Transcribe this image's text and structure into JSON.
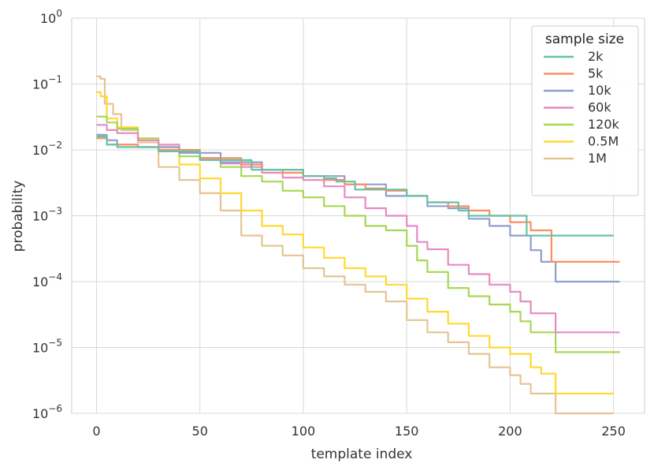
{
  "chart_data": {
    "type": "line",
    "xlabel": "template index",
    "ylabel": "probability",
    "x_scale": "linear",
    "y_scale": "log",
    "xlim": [
      -12,
      265
    ],
    "ylim": [
      1e-06,
      1
    ],
    "x_ticks": [
      0,
      50,
      100,
      150,
      200,
      250
    ],
    "x_tick_labels": [
      "0",
      "50",
      "100",
      "150",
      "200",
      "250"
    ],
    "y_ticks": [
      1e-06,
      1e-05,
      0.0001,
      0.001,
      0.01,
      0.1,
      1
    ],
    "y_tick_labels": [
      {
        "base": "10",
        "exp": "−6"
      },
      {
        "base": "10",
        "exp": "−5"
      },
      {
        "base": "10",
        "exp": "−4"
      },
      {
        "base": "10",
        "exp": "−3"
      },
      {
        "base": "10",
        "exp": "−2"
      },
      {
        "base": "10",
        "exp": "−1"
      },
      {
        "base": "10",
        "exp": "0"
      }
    ],
    "grid": true,
    "legend": {
      "title": "sample size",
      "position": "top-right"
    },
    "series": [
      {
        "name": "2k",
        "color": "#66c2a5",
        "points": [
          [
            0,
            0.016
          ],
          [
            5,
            0.012
          ],
          [
            10,
            0.011
          ],
          [
            20,
            0.011
          ],
          [
            30,
            0.0095
          ],
          [
            50,
            0.007
          ],
          [
            75,
            0.005
          ],
          [
            100,
            0.004
          ],
          [
            110,
            0.0037
          ],
          [
            116,
            0.0033
          ],
          [
            125,
            0.0025
          ],
          [
            140,
            0.0025
          ],
          [
            150,
            0.002
          ],
          [
            160,
            0.0016
          ],
          [
            175,
            0.0012
          ],
          [
            180,
            0.001
          ],
          [
            206,
            0.001
          ],
          [
            208,
            0.0005
          ],
          [
            250,
            0.0005
          ]
        ]
      },
      {
        "name": "5k",
        "color": "#fc8d62",
        "points": [
          [
            0,
            0.015
          ],
          [
            5,
            0.012
          ],
          [
            20,
            0.011
          ],
          [
            30,
            0.01
          ],
          [
            50,
            0.0075
          ],
          [
            70,
            0.006
          ],
          [
            80,
            0.005
          ],
          [
            90,
            0.0045
          ],
          [
            100,
            0.004
          ],
          [
            110,
            0.0035
          ],
          [
            120,
            0.003
          ],
          [
            130,
            0.0026
          ],
          [
            140,
            0.0024
          ],
          [
            150,
            0.002
          ],
          [
            160,
            0.0016
          ],
          [
            170,
            0.0014
          ],
          [
            180,
            0.0012
          ],
          [
            190,
            0.001
          ],
          [
            200,
            0.0008
          ],
          [
            210,
            0.0006
          ],
          [
            220,
            0.0002
          ],
          [
            253,
            0.0002
          ]
        ]
      },
      {
        "name": "10k",
        "color": "#8da0cb",
        "points": [
          [
            0,
            0.017
          ],
          [
            5,
            0.014
          ],
          [
            10,
            0.012
          ],
          [
            20,
            0.011
          ],
          [
            40,
            0.009
          ],
          [
            60,
            0.0065
          ],
          [
            80,
            0.005
          ],
          [
            100,
            0.004
          ],
          [
            120,
            0.003
          ],
          [
            140,
            0.002
          ],
          [
            160,
            0.0014
          ],
          [
            170,
            0.0013
          ],
          [
            180,
            0.0009
          ],
          [
            190,
            0.0007
          ],
          [
            200,
            0.0005
          ],
          [
            210,
            0.0003
          ],
          [
            215,
            0.0002
          ],
          [
            220,
            0.0002
          ],
          [
            222,
            0.0001
          ],
          [
            253,
            0.0001
          ]
        ]
      },
      {
        "name": "60k",
        "color": "#e78ac3",
        "points": [
          [
            0,
            0.024
          ],
          [
            5,
            0.02
          ],
          [
            10,
            0.018
          ],
          [
            20,
            0.014
          ],
          [
            30,
            0.012
          ],
          [
            40,
            0.009
          ],
          [
            50,
            0.007
          ],
          [
            60,
            0.0062
          ],
          [
            70,
            0.0055
          ],
          [
            80,
            0.0045
          ],
          [
            90,
            0.0038
          ],
          [
            100,
            0.0035
          ],
          [
            110,
            0.0028
          ],
          [
            120,
            0.0019
          ],
          [
            130,
            0.0013
          ],
          [
            140,
            0.001
          ],
          [
            150,
            0.0007
          ],
          [
            155,
            0.0004
          ],
          [
            160,
            0.00031
          ],
          [
            170,
            0.00018
          ],
          [
            180,
            0.00013
          ],
          [
            190,
            9e-05
          ],
          [
            200,
            7e-05
          ],
          [
            205,
            5e-05
          ],
          [
            210,
            3.3e-05
          ],
          [
            220,
            3.3e-05
          ],
          [
            222,
            1.7e-05
          ],
          [
            253,
            1.7e-05
          ]
        ]
      },
      {
        "name": "120k",
        "color": "#a6d854",
        "points": [
          [
            0,
            0.032
          ],
          [
            5,
            0.026
          ],
          [
            10,
            0.021
          ],
          [
            20,
            0.015
          ],
          [
            30,
            0.011
          ],
          [
            40,
            0.008
          ],
          [
            50,
            0.0075
          ],
          [
            60,
            0.0055
          ],
          [
            70,
            0.004
          ],
          [
            80,
            0.0033
          ],
          [
            90,
            0.0024
          ],
          [
            100,
            0.0019
          ],
          [
            110,
            0.0014
          ],
          [
            120,
            0.001
          ],
          [
            130,
            0.0007
          ],
          [
            140,
            0.0006
          ],
          [
            150,
            0.00035
          ],
          [
            155,
            0.00021
          ],
          [
            160,
            0.00014
          ],
          [
            170,
            8e-05
          ],
          [
            180,
            6e-05
          ],
          [
            190,
            4.5e-05
          ],
          [
            200,
            3.5e-05
          ],
          [
            205,
            2.5e-05
          ],
          [
            210,
            1.7e-05
          ],
          [
            220,
            1.7e-05
          ],
          [
            222,
            8.5e-06
          ],
          [
            253,
            8.5e-06
          ]
        ]
      },
      {
        "name": "0.5M",
        "color": "#ffd92f",
        "points": [
          [
            0,
            0.075
          ],
          [
            2,
            0.065
          ],
          [
            5,
            0.03
          ],
          [
            10,
            0.022
          ],
          [
            20,
            0.014
          ],
          [
            30,
            0.01
          ],
          [
            40,
            0.006
          ],
          [
            50,
            0.0037
          ],
          [
            60,
            0.0022
          ],
          [
            70,
            0.0012
          ],
          [
            80,
            0.0007
          ],
          [
            90,
            0.00052
          ],
          [
            100,
            0.00033
          ],
          [
            110,
            0.00023
          ],
          [
            120,
            0.00016
          ],
          [
            130,
            0.00012
          ],
          [
            140,
            9e-05
          ],
          [
            150,
            5.5e-05
          ],
          [
            160,
            3.5e-05
          ],
          [
            170,
            2.3e-05
          ],
          [
            180,
            1.5e-05
          ],
          [
            190,
            1e-05
          ],
          [
            200,
            8e-06
          ],
          [
            210,
            5e-06
          ],
          [
            215,
            4e-06
          ],
          [
            220,
            4e-06
          ],
          [
            222,
            2e-06
          ],
          [
            250,
            2e-06
          ]
        ]
      },
      {
        "name": "1M",
        "color": "#e5c494",
        "points": [
          [
            0,
            0.13
          ],
          [
            2,
            0.12
          ],
          [
            4,
            0.05
          ],
          [
            8,
            0.035
          ],
          [
            12,
            0.02
          ],
          [
            20,
            0.013
          ],
          [
            30,
            0.0055
          ],
          [
            40,
            0.0035
          ],
          [
            50,
            0.0022
          ],
          [
            60,
            0.0012
          ],
          [
            70,
            0.0005
          ],
          [
            80,
            0.00035
          ],
          [
            90,
            0.00025
          ],
          [
            100,
            0.00016
          ],
          [
            110,
            0.00012
          ],
          [
            120,
            9e-05
          ],
          [
            130,
            7e-05
          ],
          [
            140,
            5e-05
          ],
          [
            150,
            2.6e-05
          ],
          [
            160,
            1.7e-05
          ],
          [
            170,
            1.2e-05
          ],
          [
            180,
            8e-06
          ],
          [
            190,
            5e-06
          ],
          [
            200,
            3.8e-06
          ],
          [
            205,
            2.8e-06
          ],
          [
            210,
            2e-06
          ],
          [
            220,
            2e-06
          ],
          [
            222,
            1e-06
          ],
          [
            250,
            1e-06
          ]
        ]
      }
    ]
  }
}
